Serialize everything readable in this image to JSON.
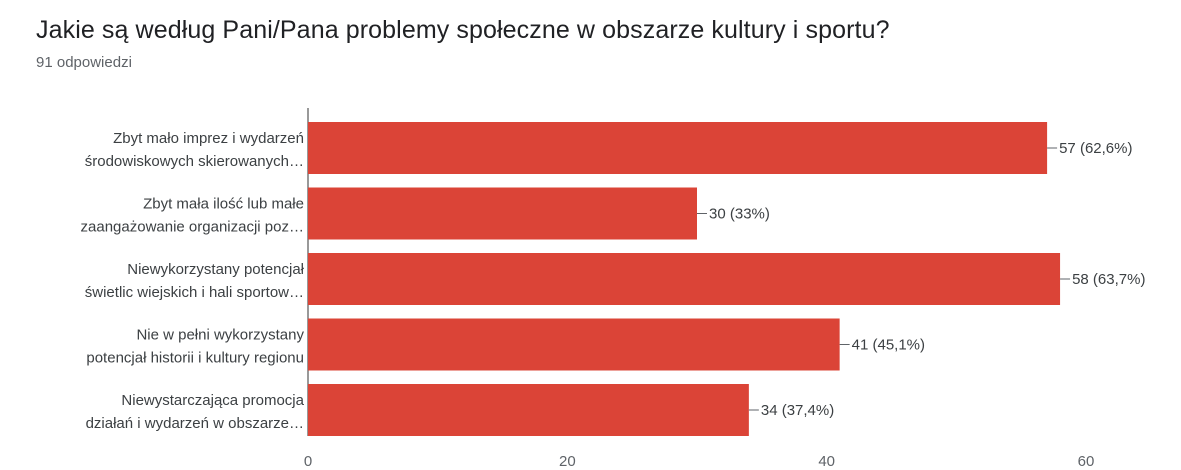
{
  "chart_data": {
    "type": "bar",
    "orientation": "horizontal",
    "title": "Jakie są według Pani/Pana problemy społeczne w obszarze kultury i sportu?",
    "subtitle": "91 odpowiedzi",
    "categories": [
      [
        "Zbyt mało imprez i wydarzeń",
        "środowiskowych skierowanych…"
      ],
      [
        "Zbyt mała ilość lub małe",
        "zaangażowanie organizacji poz…"
      ],
      [
        "Niewykorzystany potencjał",
        "świetlic wiejskich i hali sportow…"
      ],
      [
        "Nie w pełni wykorzystany",
        "potencjał historii i kultury regionu"
      ],
      [
        "Niewystarczająca promocja",
        "działań i wydarzeń w obszarze…"
      ]
    ],
    "values": [
      57,
      30,
      58,
      41,
      34
    ],
    "value_labels": [
      "57 (62,6%)",
      "30 (33%)",
      "58 (63,7%)",
      "41 (45,1%)",
      "34 (37,4%)"
    ],
    "xlim": [
      0,
      60
    ],
    "xticks": [
      "0",
      "20",
      "40",
      "60"
    ],
    "xtick_values": [
      0,
      20,
      40,
      60
    ],
    "bar_color": "#db4437",
    "grid": false,
    "legend": "none"
  }
}
